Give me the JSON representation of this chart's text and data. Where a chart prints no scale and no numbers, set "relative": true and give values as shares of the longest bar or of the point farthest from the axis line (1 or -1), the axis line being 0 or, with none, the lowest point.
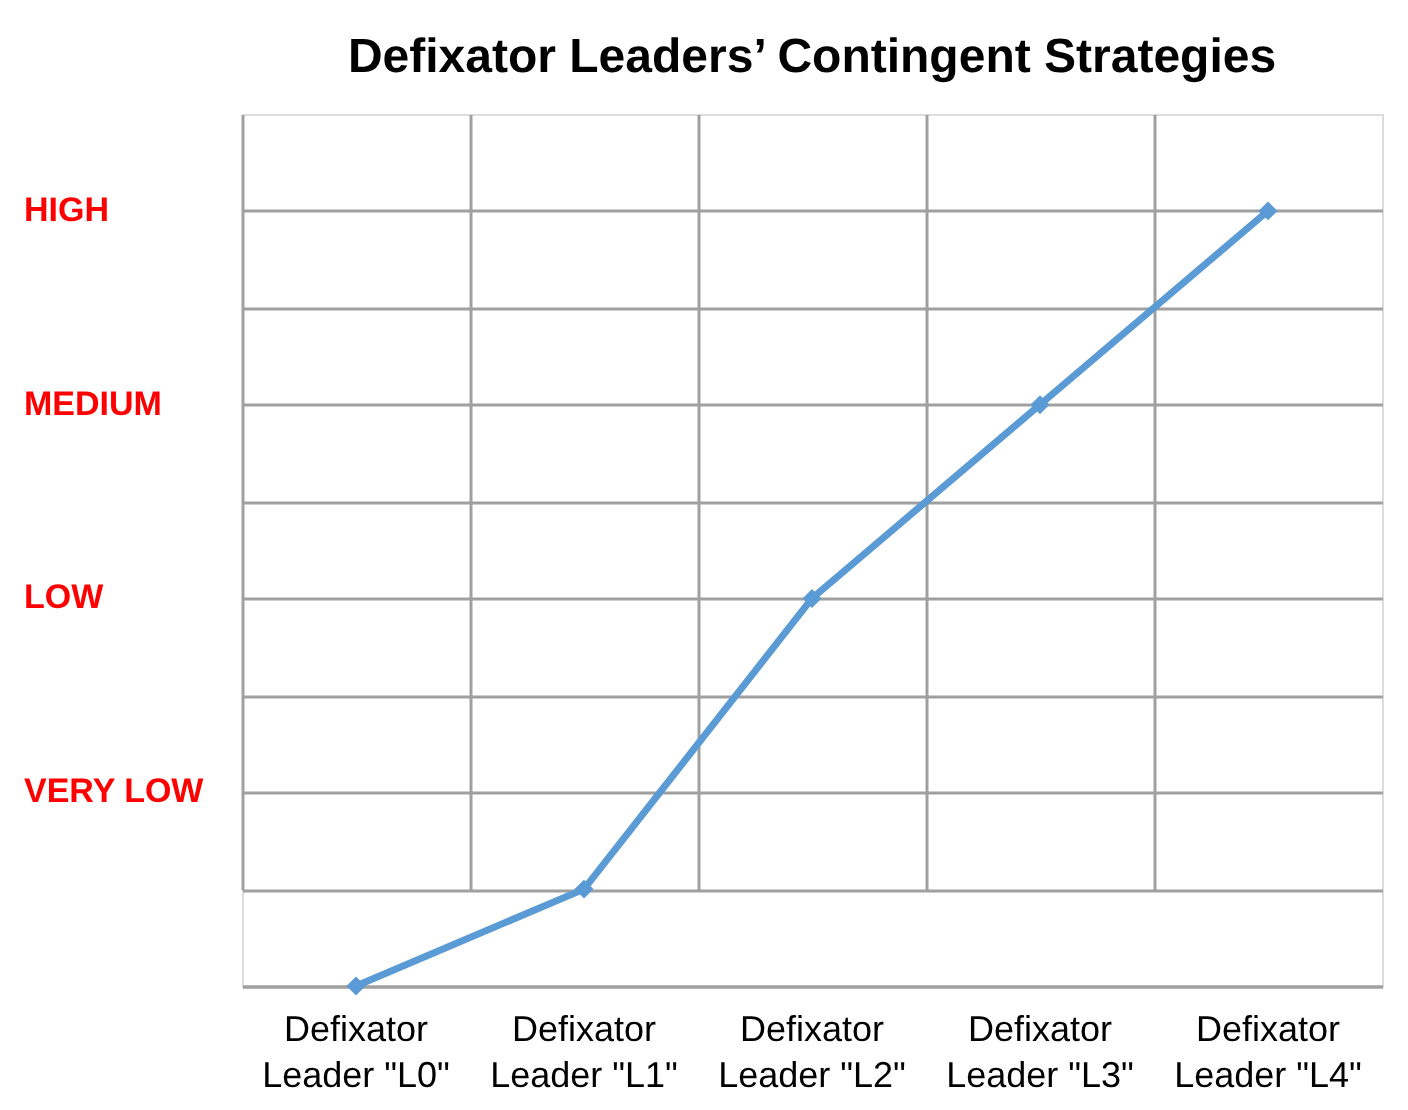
{
  "chart_data": {
    "type": "line",
    "title": "Defixator Leaders’ Contingent Strategies",
    "categories": [
      "Defixator Leader \"L0\"",
      "Defixator Leader \"L1\"",
      "Defixator Leader \"L2\"",
      "Defixator Leader \"L3\"",
      "Defixator Leader \"L4\""
    ],
    "values": [
      0,
      0.125,
      0.5,
      0.75,
      1
    ],
    "color": "#5b9bd5",
    "marker": "diamond",
    "relative": true,
    "annotations": [
      "HIGH",
      "MEDIUM",
      "LOW",
      "VERY LOW"
    ],
    "grid": true
  }
}
